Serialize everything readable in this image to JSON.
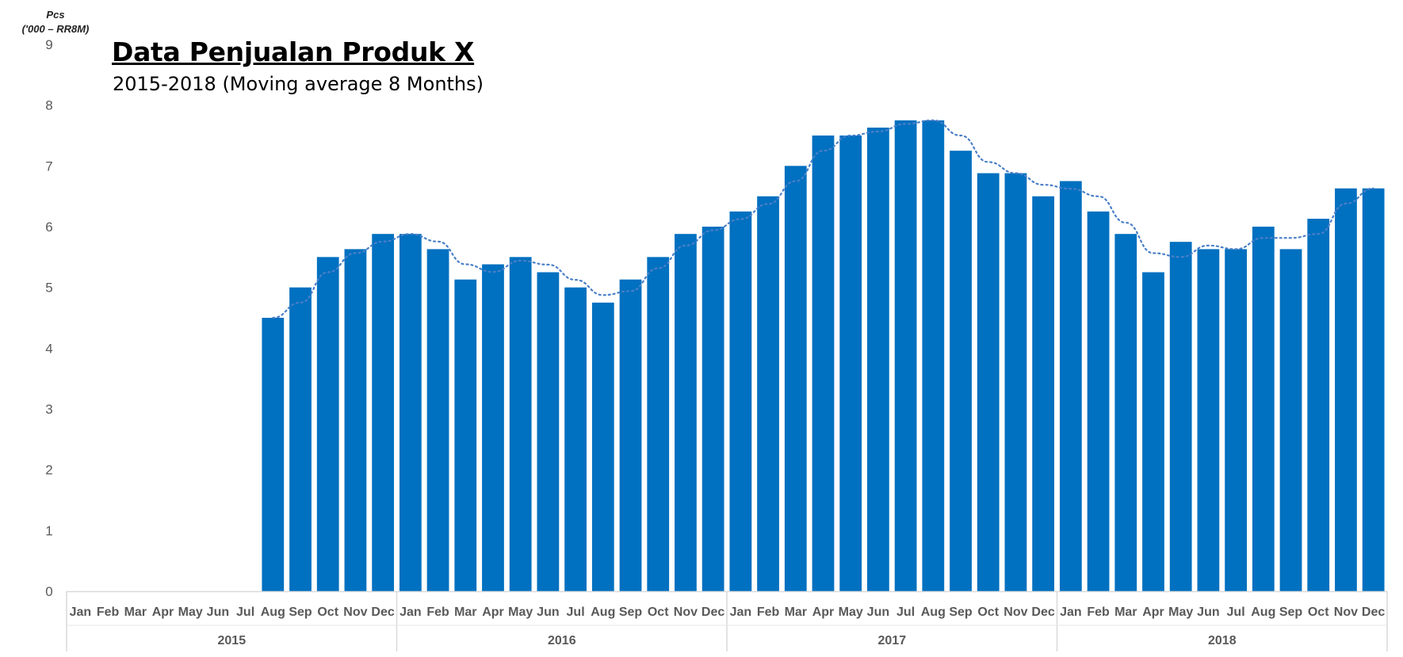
{
  "chart_data": {
    "type": "bar",
    "title": "Data Penjualan Produk X",
    "subtitle": "2015-2018 (Moving average 8 Months)",
    "ylabel_line1": "Pcs",
    "ylabel_line2": "('000 – RR8M)",
    "ylim": [
      0,
      9
    ],
    "yticks": [
      "0",
      "1",
      "2",
      "3",
      "4",
      "5",
      "6",
      "7",
      "8",
      "9"
    ],
    "grid": false,
    "legend": "none",
    "years": [
      "2015",
      "2016",
      "2017",
      "2018"
    ],
    "categories": [
      "Jan",
      "Feb",
      "Mar",
      "Apr",
      "May",
      "Jun",
      "Jul",
      "Aug",
      "Sep",
      "Oct",
      "Nov",
      "Dec",
      "Jan",
      "Feb",
      "Mar",
      "Apr",
      "May",
      "Jun",
      "Jul",
      "Aug",
      "Sep",
      "Oct",
      "Nov",
      "Dec",
      "Jan",
      "Feb",
      "Mar",
      "Apr",
      "May",
      "Jun",
      "Jul",
      "Aug",
      "Sep",
      "Oct",
      "Nov",
      "Dec",
      "Jan",
      "Feb",
      "Mar",
      "Apr",
      "May",
      "Jun",
      "Jul",
      "Aug",
      "Sep",
      "Oct",
      "Nov",
      "Dec"
    ],
    "values": [
      null,
      null,
      null,
      null,
      null,
      null,
      null,
      4.5,
      5.0,
      5.5,
      5.63,
      5.88,
      5.88,
      5.63,
      5.13,
      5.38,
      5.5,
      5.25,
      5.0,
      4.75,
      5.13,
      5.5,
      5.88,
      6.0,
      6.25,
      6.5,
      7.0,
      7.5,
      7.5,
      7.63,
      7.75,
      7.75,
      7.25,
      6.88,
      6.88,
      6.5,
      6.75,
      6.25,
      5.88,
      5.25,
      5.75,
      5.63,
      5.63,
      6.0,
      5.63,
      6.13,
      6.63,
      6.63
    ],
    "trendline": "moving average (dotted)",
    "bar_color": "#0070c0",
    "trend_color": "#4a7fc8"
  }
}
